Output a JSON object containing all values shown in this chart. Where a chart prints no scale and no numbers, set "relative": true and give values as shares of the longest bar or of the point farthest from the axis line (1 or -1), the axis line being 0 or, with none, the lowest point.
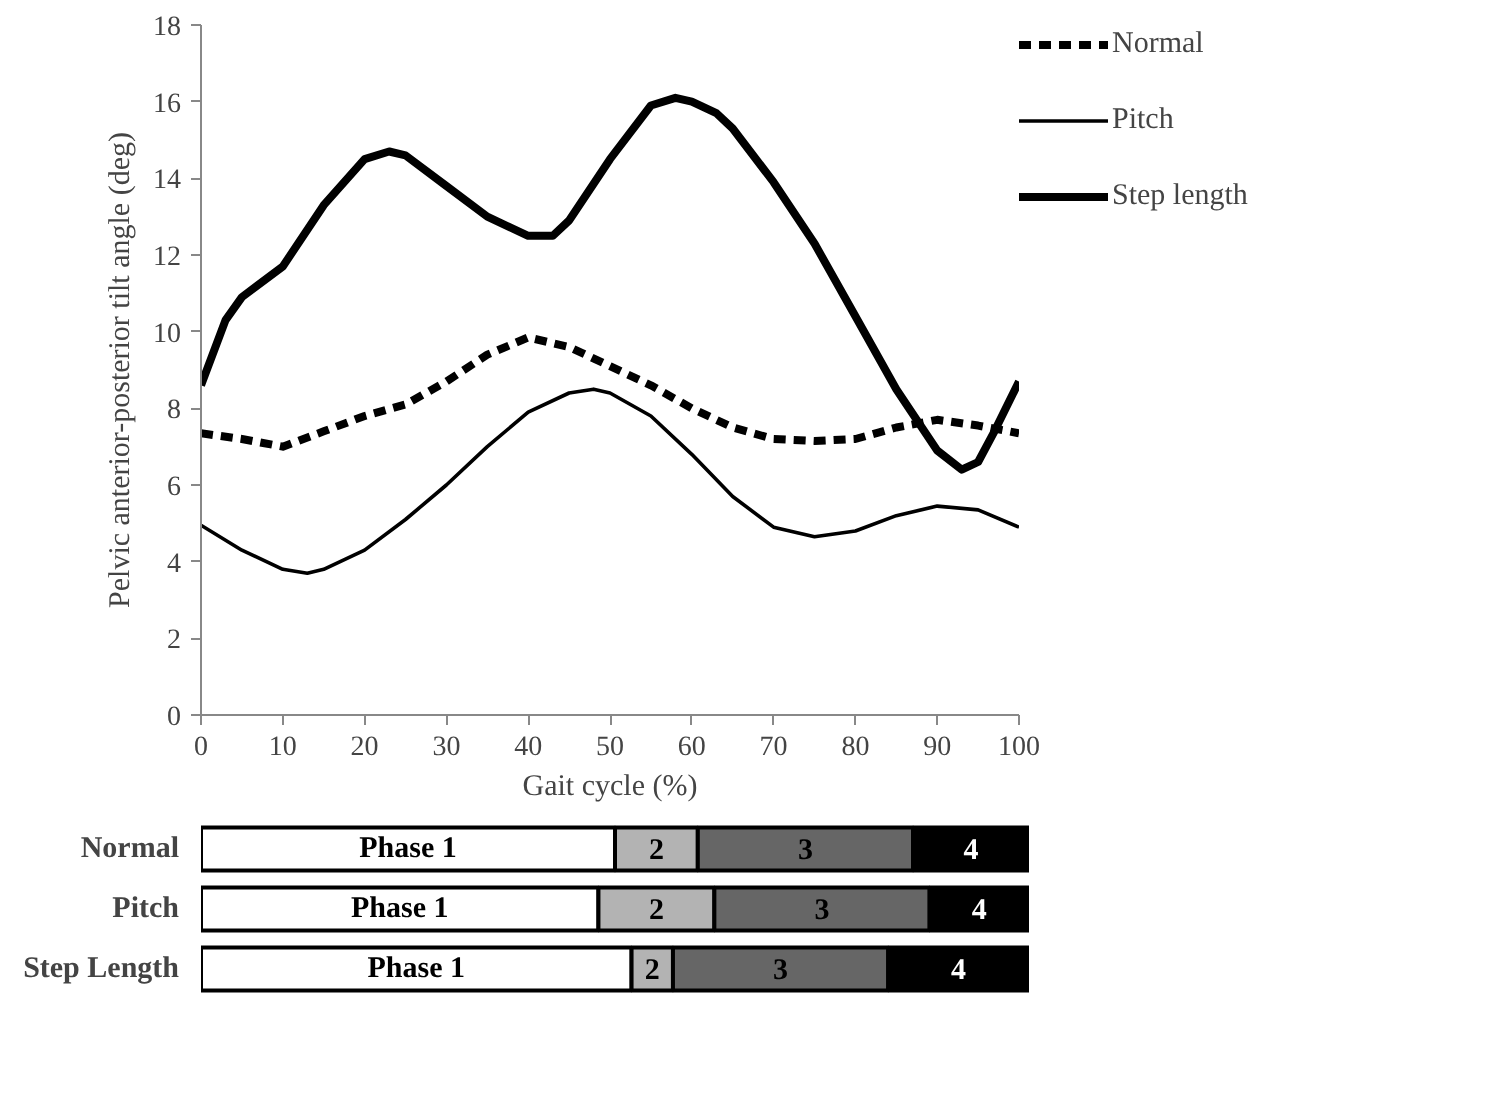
{
  "chart_data": [
    {
      "type": "line",
      "xlabel": "Gait cycle (%)",
      "ylabel": "Pelvic anterior-posterior tilt angle (deg)",
      "xlim": [
        0,
        100
      ],
      "ylim": [
        0,
        18
      ],
      "xticks": [
        0,
        10,
        20,
        30,
        40,
        50,
        60,
        70,
        80,
        90,
        100
      ],
      "yticks": [
        0,
        2,
        4,
        6,
        8,
        10,
        12,
        14,
        16,
        18
      ],
      "grid": false,
      "legend": "top right",
      "marker": "none",
      "series": [
        {
          "name": "Normal",
          "color": "#000000",
          "line_style": "dashed",
          "x": [
            0,
            5,
            10,
            15,
            20,
            25,
            30,
            35,
            40,
            45,
            50,
            55,
            60,
            65,
            70,
            75,
            80,
            85,
            90,
            95,
            100
          ],
          "values": [
            7.35,
            7.2,
            7.0,
            7.4,
            7.8,
            8.1,
            8.7,
            9.4,
            9.85,
            9.6,
            9.1,
            8.6,
            8.0,
            7.5,
            7.2,
            7.15,
            7.2,
            7.5,
            7.7,
            7.55,
            7.35
          ]
        },
        {
          "name": "Pitch",
          "color": "#000000",
          "line_style": "solid",
          "x": [
            0,
            5,
            10,
            13,
            15,
            20,
            25,
            30,
            35,
            40,
            45,
            48,
            50,
            55,
            60,
            65,
            70,
            75,
            80,
            85,
            90,
            95,
            100
          ],
          "values": [
            4.95,
            4.3,
            3.8,
            3.7,
            3.8,
            4.3,
            5.1,
            6.0,
            7.0,
            7.9,
            8.4,
            8.5,
            8.4,
            7.8,
            6.8,
            5.7,
            4.9,
            4.65,
            4.8,
            5.2,
            5.45,
            5.35,
            4.9
          ]
        },
        {
          "name": "Step length",
          "color": "#000000",
          "line_style": "solid",
          "x": [
            0,
            3,
            5,
            10,
            15,
            20,
            23,
            25,
            30,
            35,
            40,
            43,
            45,
            50,
            55,
            58,
            60,
            63,
            65,
            70,
            75,
            80,
            85,
            90,
            93,
            95,
            97,
            100
          ],
          "values": [
            8.6,
            10.3,
            10.9,
            11.7,
            13.3,
            14.5,
            14.7,
            14.6,
            13.8,
            13.0,
            12.5,
            12.5,
            12.9,
            14.5,
            15.9,
            16.1,
            16.0,
            15.7,
            15.3,
            13.9,
            12.3,
            10.4,
            8.5,
            6.9,
            6.4,
            6.6,
            7.4,
            8.7
          ]
        }
      ]
    },
    {
      "type": "bar",
      "orientation": "horizontal",
      "stacked": true,
      "relative": true,
      "categories": [
        "Normal",
        "Pitch",
        "Step Length"
      ],
      "tick_labels": "y",
      "series": [
        {
          "name": "Phase 1",
          "color": "#ffffff",
          "values": [
            0.5,
            0.48,
            0.52
          ]
        },
        {
          "name": "2",
          "color": "#b3b3b3",
          "values": [
            0.1,
            0.14,
            0.05
          ]
        },
        {
          "name": "3",
          "color": "#666666",
          "values": [
            0.26,
            0.26,
            0.26
          ]
        },
        {
          "name": "4",
          "color": "#000000",
          "values": [
            0.14,
            0.12,
            0.17
          ]
        }
      ]
    }
  ]
}
